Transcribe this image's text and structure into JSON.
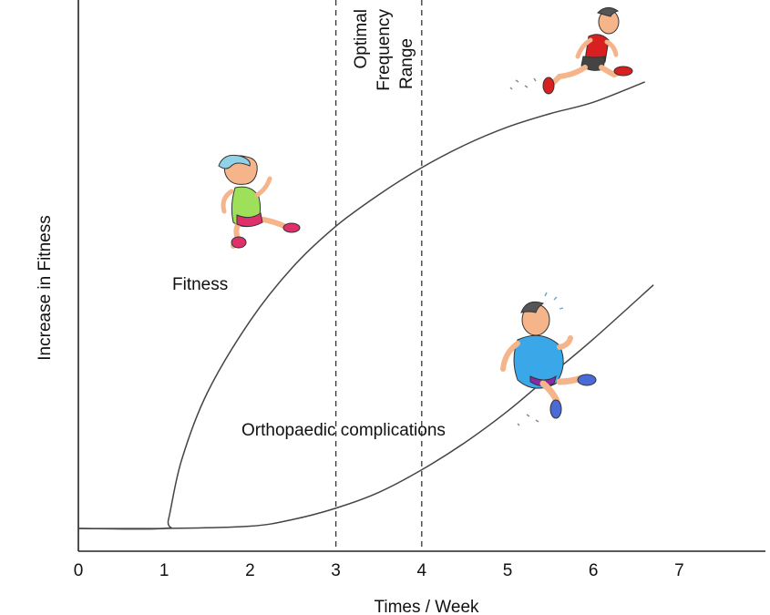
{
  "chart_data": {
    "type": "line",
    "xlabel": "Times / Week",
    "ylabel": "Increase in Fitness",
    "xlim": [
      0,
      8
    ],
    "x_ticks": [
      "0",
      "1",
      "2",
      "3",
      "4",
      "5",
      "6",
      "7"
    ],
    "y_ticks": [],
    "grid": false,
    "reference_lines": [
      {
        "x": 3,
        "style": "dashed"
      },
      {
        "x": 4,
        "style": "dashed"
      }
    ],
    "zone_label": [
      "Optimal",
      "Frequency",
      "Range"
    ],
    "series": [
      {
        "name": "Fitness",
        "x": [
          0,
          1,
          1.05,
          1.2,
          1.5,
          2,
          2.5,
          3,
          3.5,
          4,
          4.5,
          5,
          5.5,
          6,
          6.6
        ],
        "y": [
          0.0,
          0.0,
          0.2,
          1.5,
          3.0,
          4.6,
          5.8,
          6.7,
          7.4,
          8.0,
          8.5,
          8.9,
          9.2,
          9.45,
          9.9
        ]
      },
      {
        "name": "Orthopaedic complications",
        "x": [
          0,
          1,
          2,
          2.5,
          3,
          3.5,
          4,
          4.5,
          5,
          5.5,
          6,
          6.7
        ],
        "y": [
          0.0,
          0.0,
          0.05,
          0.2,
          0.45,
          0.8,
          1.3,
          1.9,
          2.6,
          3.4,
          4.2,
          5.4
        ]
      }
    ],
    "illustrations": [
      "runner-woman-icon",
      "runner-man-fit-icon",
      "runner-man-heavy-icon"
    ]
  }
}
